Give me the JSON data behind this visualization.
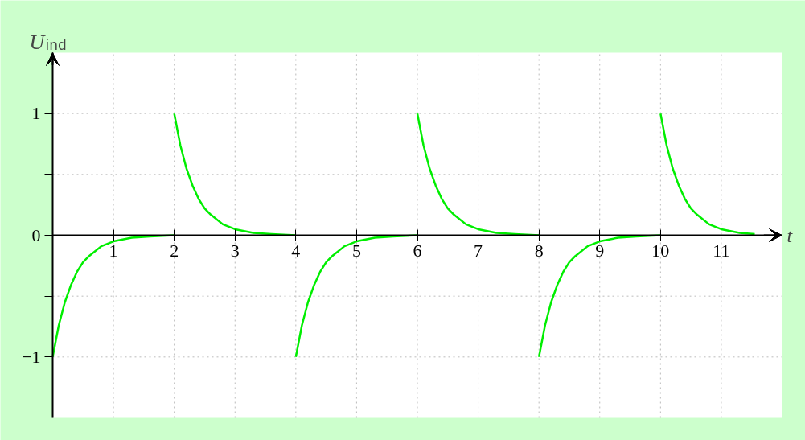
{
  "chart_data": {
    "type": "line",
    "xlabel": "t",
    "ylabel": "U$_{ind}$",
    "xlim": [
      0,
      12
    ],
    "ylim": [
      -1.5,
      1.5
    ],
    "xticks": [
      {
        "value": 0,
        "label": null
      },
      1,
      2,
      3,
      4,
      5,
      6,
      7,
      8,
      9,
      10,
      11,
      {
        "value": 12,
        "label": null
      }
    ],
    "yticks": [
      -1,
      {
        "value": -0.5,
        "label": null
      },
      0,
      {
        "value": 0.5,
        "label": null
      },
      1
    ],
    "grid": true,
    "line_style": "solid",
    "marker": "none",
    "series": [
      {
        "color": "#00ee00",
        "x": [
          0,
          0.1,
          0.2,
          0.3,
          0.4,
          0.5,
          0.6,
          0.8,
          1.0,
          1.3,
          1.6,
          2.0
        ],
        "values": [
          -1,
          -0.74,
          -0.55,
          -0.41,
          -0.3,
          -0.22,
          -0.17,
          -0.09,
          -0.05,
          -0.02,
          -0.01,
          0
        ]
      },
      {
        "color": "#00ee00",
        "x": [
          2,
          2.1,
          2.2,
          2.3,
          2.4,
          2.5,
          2.6,
          2.8,
          3.0,
          3.3,
          3.6,
          4.0
        ],
        "values": [
          1,
          0.74,
          0.55,
          0.41,
          0.3,
          0.22,
          0.17,
          0.09,
          0.05,
          0.02,
          0.01,
          0
        ]
      },
      {
        "color": "#00ee00",
        "x": [
          4,
          4.1,
          4.2,
          4.3,
          4.4,
          4.5,
          4.6,
          4.8,
          5.0,
          5.3,
          5.6,
          6.0
        ],
        "values": [
          -1,
          -0.74,
          -0.55,
          -0.41,
          -0.3,
          -0.22,
          -0.17,
          -0.09,
          -0.05,
          -0.02,
          -0.01,
          0
        ]
      },
      {
        "color": "#00ee00",
        "x": [
          6,
          6.1,
          6.2,
          6.3,
          6.4,
          6.5,
          6.6,
          6.8,
          7.0,
          7.3,
          7.6,
          8.0
        ],
        "values": [
          1,
          0.74,
          0.55,
          0.41,
          0.3,
          0.22,
          0.17,
          0.09,
          0.05,
          0.02,
          0.01,
          0
        ]
      },
      {
        "color": "#00ee00",
        "x": [
          8,
          8.1,
          8.2,
          8.3,
          8.4,
          8.5,
          8.6,
          8.8,
          9.0,
          9.3,
          9.6,
          10.0
        ],
        "values": [
          -1,
          -0.74,
          -0.55,
          -0.41,
          -0.3,
          -0.22,
          -0.17,
          -0.09,
          -0.05,
          -0.02,
          -0.01,
          0
        ]
      },
      {
        "color": "#00ee00",
        "x": [
          10,
          10.1,
          10.2,
          10.3,
          10.4,
          10.5,
          10.6,
          10.8,
          11.0,
          11.3,
          11.55
        ],
        "values": [
          1,
          0.74,
          0.55,
          0.41,
          0.3,
          0.22,
          0.17,
          0.09,
          0.05,
          0.02,
          0.01
        ]
      }
    ]
  }
}
